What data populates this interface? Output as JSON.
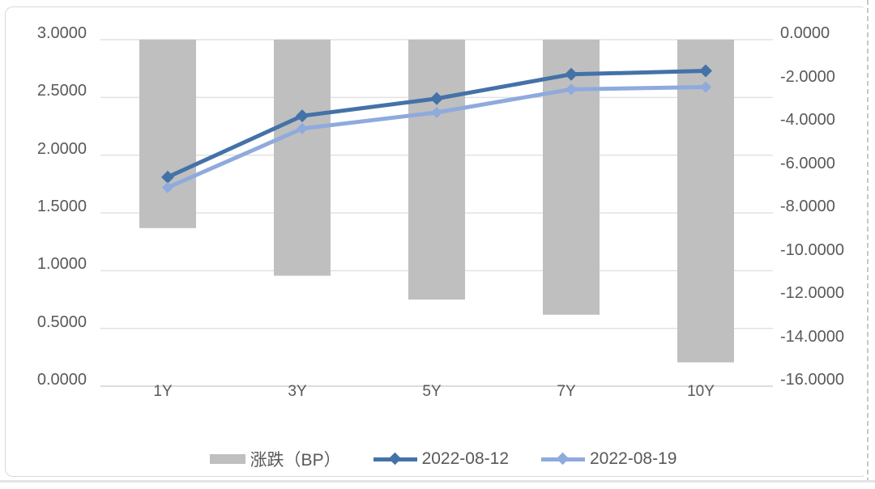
{
  "chart_data": {
    "type": "combo-bar-line",
    "categories": [
      "1Y",
      "3Y",
      "5Y",
      "7Y",
      "10Y"
    ],
    "bar_series": {
      "name": "涨跌（BP）",
      "axis": "right",
      "values": [
        -8.7,
        -10.9,
        -12.0,
        -12.7,
        -14.9
      ],
      "color": "#bfbfbf"
    },
    "line_series": [
      {
        "name": "2022-08-12",
        "axis": "left",
        "values": [
          1.81,
          2.34,
          2.49,
          2.7,
          2.73
        ],
        "color": "#4472a8",
        "marker": "diamond"
      },
      {
        "name": "2022-08-19",
        "axis": "left",
        "values": [
          1.72,
          2.23,
          2.37,
          2.57,
          2.59
        ],
        "color": "#8faadc",
        "marker": "diamond"
      }
    ],
    "left_axis": {
      "min": 0,
      "max": 3,
      "step": 0.5,
      "ticks": [
        "3.0000",
        "2.5000",
        "2.0000",
        "1.5000",
        "1.0000",
        "0.5000",
        "0.0000"
      ]
    },
    "right_axis": {
      "min": -16,
      "max": 0,
      "step": -2,
      "ticks": [
        "0.0000",
        "-2.0000",
        "-4.0000",
        "-6.0000",
        "-8.0000",
        "-10.0000",
        "-12.0000",
        "-14.0000",
        "-16.0000"
      ]
    },
    "grid": true,
    "legend_position": "bottom",
    "colors": {
      "gridline": "#e2e2e2",
      "axis_line": "#d2d2d2",
      "axis_text": "#595959",
      "bar": "#bfbfbf",
      "line_2022_08_12": "#4472a8",
      "line_2022_08_19": "#8faadc",
      "card_border": "#d9d9d9"
    }
  }
}
